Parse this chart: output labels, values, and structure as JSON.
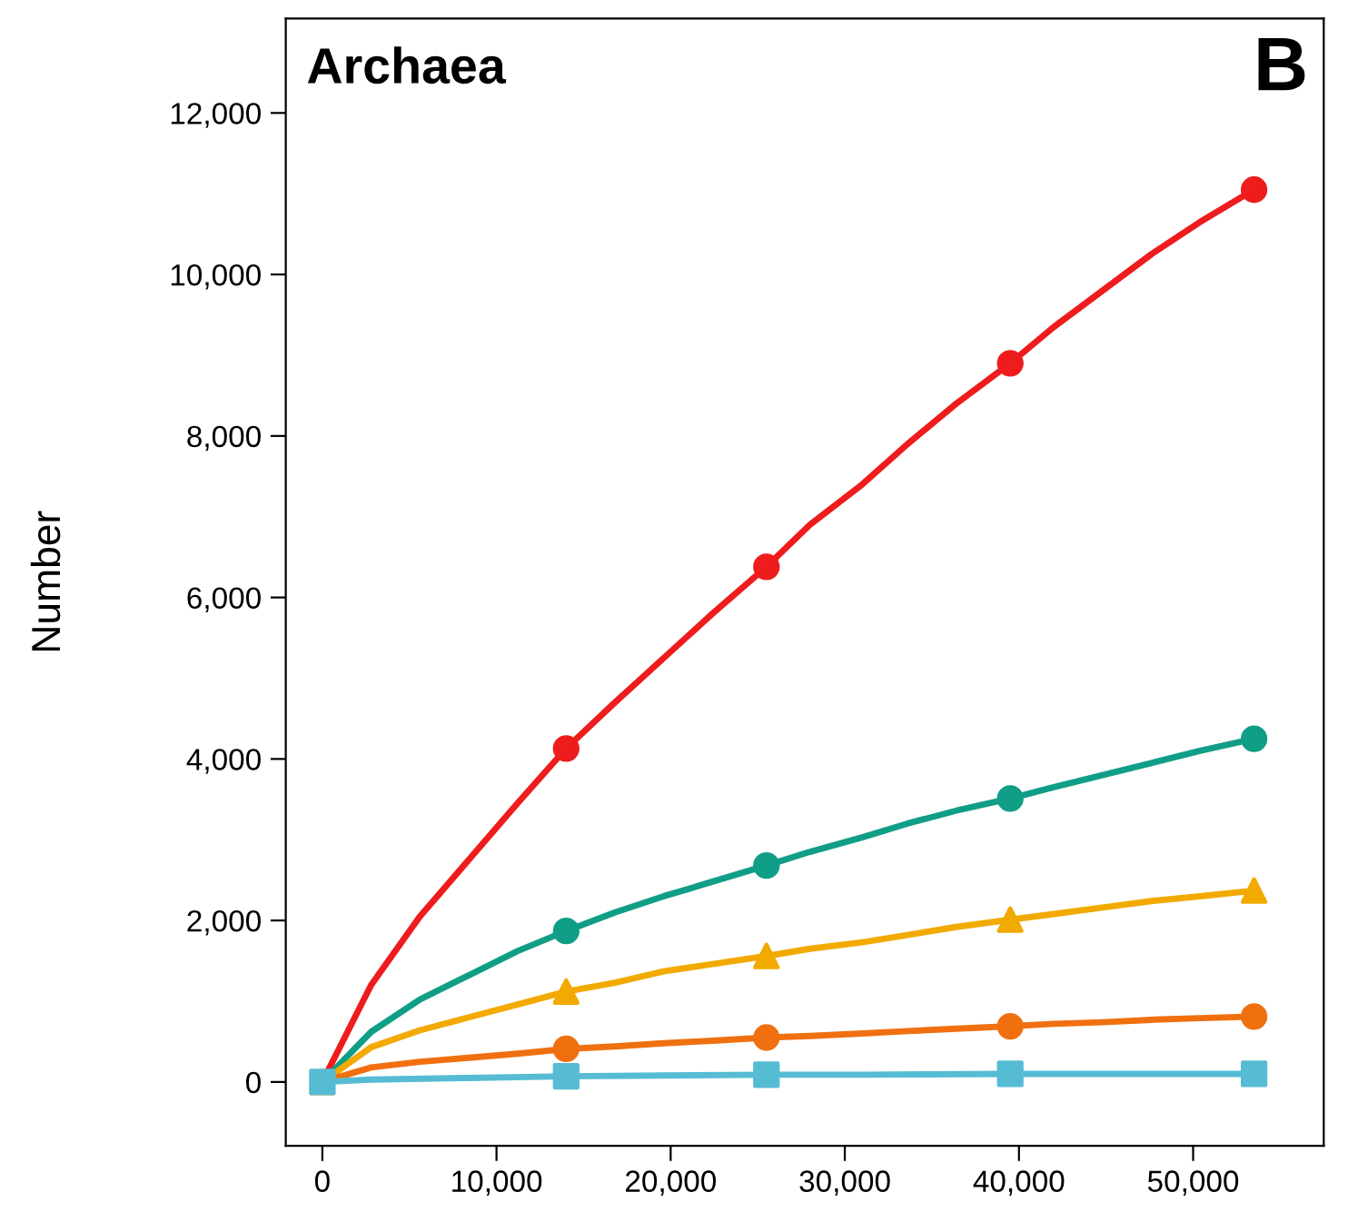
{
  "chart_data": {
    "type": "line",
    "title": "Archaea",
    "ylabel": "Number",
    "annotations": [
      "B"
    ],
    "xlim": [
      -2100,
      57500
    ],
    "xticks": [
      {
        "value": 0,
        "label": "0"
      },
      {
        "value": 10000,
        "label": "10,000"
      },
      {
        "value": 20000,
        "label": "20,000"
      },
      {
        "value": 30000,
        "label": "30,000"
      },
      {
        "value": 40000,
        "label": "40,000"
      },
      {
        "value": 50000,
        "label": "50,000"
      }
    ],
    "ylim": [
      -790,
      13170
    ],
    "yticks": [
      {
        "value": 0,
        "label": "0"
      },
      {
        "value": 2000,
        "label": "2,000"
      },
      {
        "value": 4000,
        "label": "4,000"
      },
      {
        "value": 6000,
        "label": "6,000"
      },
      {
        "value": 8000,
        "label": "8,000"
      },
      {
        "value": 10000,
        "label": "10,000"
      },
      {
        "value": 12000,
        "label": "12,000"
      }
    ],
    "grid": false,
    "legend": false,
    "marker": "none",
    "line_style": "solid",
    "series": [
      {
        "color": "#ee1c1c",
        "x": [
          0,
          2800,
          5600,
          8400,
          11200,
          14000,
          16800,
          19600,
          22400,
          25500,
          28000,
          31000,
          33600,
          36400,
          39500,
          42000,
          44800,
          47600,
          50400,
          53500
        ],
        "values": [
          0,
          1200,
          2050,
          2750,
          3450,
          4130,
          4700,
          5250,
          5800,
          6380,
          6900,
          7400,
          7900,
          8400,
          8900,
          9350,
          9800,
          10250,
          10650,
          11050
        ]
      },
      {
        "color": "#109e86",
        "x": [
          0,
          2800,
          5600,
          8400,
          11200,
          14000,
          16800,
          19600,
          22400,
          25500,
          28000,
          31000,
          33600,
          36400,
          39500,
          42000,
          44800,
          47600,
          50400,
          53500
        ],
        "values": [
          0,
          620,
          1020,
          1320,
          1620,
          1870,
          2100,
          2300,
          2480,
          2680,
          2850,
          3030,
          3200,
          3360,
          3510,
          3650,
          3800,
          3950,
          4100,
          4250
        ]
      },
      {
        "color": "#f2aa00",
        "x": [
          0,
          2800,
          5600,
          8400,
          11200,
          14000,
          16800,
          19600,
          22400,
          25500,
          28000,
          31000,
          33600,
          36400,
          39500,
          42000,
          44800,
          47600,
          50400,
          53500
        ],
        "values": [
          0,
          430,
          640,
          800,
          960,
          1120,
          1230,
          1370,
          1460,
          1560,
          1650,
          1730,
          1820,
          1920,
          2010,
          2080,
          2160,
          2240,
          2300,
          2370
        ]
      },
      {
        "color": "#f07010",
        "x": [
          0,
          2800,
          5600,
          8400,
          11200,
          14000,
          16800,
          19600,
          22400,
          25500,
          28000,
          31000,
          33600,
          36400,
          39500,
          42000,
          44800,
          47600,
          50400,
          53500
        ],
        "values": [
          0,
          180,
          250,
          300,
          350,
          410,
          440,
          480,
          510,
          550,
          570,
          600,
          630,
          660,
          690,
          720,
          740,
          770,
          790,
          810
        ]
      },
      {
        "color": "#56bcd4",
        "x": [
          0,
          2800,
          8400,
          14000,
          19600,
          25500,
          31000,
          39500,
          47600,
          53500
        ],
        "values": [
          0,
          30,
          50,
          70,
          80,
          90,
          90,
          100,
          100,
          100
        ]
      },
      {
        "type": "scatter",
        "marker": "circle",
        "color": "#ee1c1c",
        "x": [
          14000,
          25500,
          39500,
          53500
        ],
        "values": [
          4130,
          6380,
          8900,
          11050
        ]
      },
      {
        "type": "scatter",
        "marker": "circle",
        "color": "#109e86",
        "x": [
          14000,
          25500,
          39500,
          53500
        ],
        "values": [
          1870,
          2680,
          3510,
          4250
        ]
      },
      {
        "type": "scatter",
        "marker": "triangle",
        "color": "#f2aa00",
        "x": [
          0,
          14000,
          25500,
          39500,
          53500
        ],
        "values": [
          0,
          1120,
          1560,
          2010,
          2370
        ]
      },
      {
        "type": "scatter",
        "marker": "circle",
        "color": "#f07010",
        "x": [
          14000,
          25500,
          39500,
          53500
        ],
        "values": [
          410,
          550,
          690,
          810
        ]
      },
      {
        "type": "scatter",
        "marker": "square",
        "color": "#56bcd4",
        "x": [
          0,
          14000,
          25500,
          39500,
          53500
        ],
        "values": [
          0,
          70,
          90,
          100,
          100
        ]
      }
    ]
  }
}
